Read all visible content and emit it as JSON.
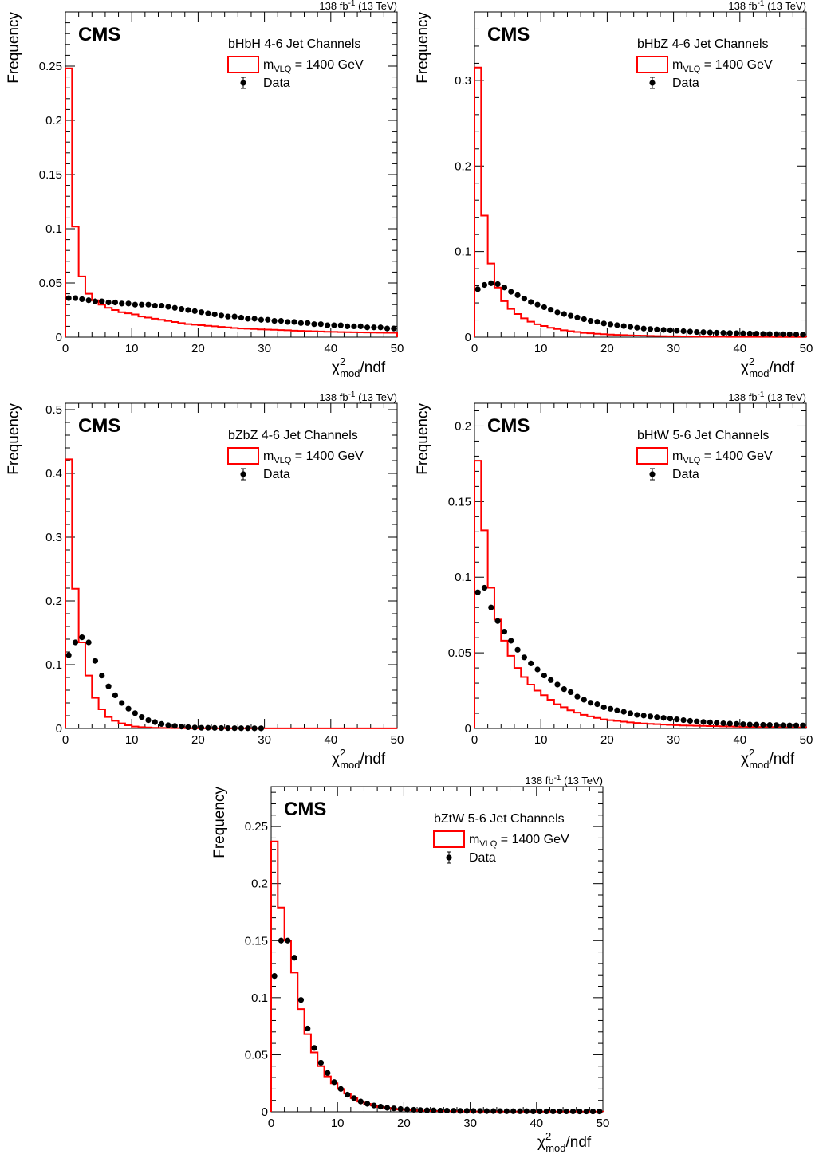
{
  "colors": {
    "signal": "#ff0000",
    "data": "#000000",
    "frame": "#000000"
  },
  "chart_data": [
    {
      "type": "histogram+scatter",
      "experiment": "CMS",
      "lumi_label": "138 fb",
      "lumi_sup": "-1",
      "energy_label": "(13 TeV)",
      "channel": "bHbH 4-6 Jet Channels",
      "legend": {
        "signal_prefix": "m",
        "signal_sub": "VLQ",
        "signal_suffix": " = 1400 GeV",
        "data_label": "Data"
      },
      "ylabel": "Frequency",
      "xlabel_chi": "χ",
      "xlabel_sup": "2",
      "xlabel_sub": "mod",
      "xlabel_suffix": "/ndf",
      "xlim": [
        0,
        50
      ],
      "ylim": [
        0,
        0.3
      ],
      "xticks": [
        0,
        10,
        20,
        30,
        40,
        50
      ],
      "xtick_labels": [
        "0",
        "10",
        "20",
        "30",
        "40",
        "50"
      ],
      "yticks": [
        0,
        0.05,
        0.1,
        0.15,
        0.2,
        0.25
      ],
      "ytick_labels": [
        "0",
        "0.05",
        "0.1",
        "0.15",
        "0.2",
        "0.25"
      ],
      "signal": [
        0.248,
        0.102,
        0.056,
        0.04,
        0.034,
        0.03,
        0.027,
        0.025,
        0.023,
        0.022,
        0.021,
        0.019,
        0.018,
        0.017,
        0.016,
        0.015,
        0.014,
        0.013,
        0.012,
        0.0115,
        0.011,
        0.0105,
        0.01,
        0.0095,
        0.009,
        0.0085,
        0.008,
        0.0078,
        0.0075,
        0.0072,
        0.007,
        0.0068,
        0.0065,
        0.0063,
        0.006,
        0.0058,
        0.0056,
        0.0054,
        0.0052,
        0.005,
        0.0049,
        0.0047,
        0.0046,
        0.0045,
        0.0044,
        0.0043,
        0.0042,
        0.0041,
        0.004,
        0.004
      ],
      "data": [
        0.036,
        0.036,
        0.035,
        0.034,
        0.033,
        0.033,
        0.032,
        0.032,
        0.031,
        0.031,
        0.03,
        0.03,
        0.03,
        0.029,
        0.029,
        0.028,
        0.027,
        0.026,
        0.025,
        0.024,
        0.023,
        0.022,
        0.021,
        0.02,
        0.019,
        0.019,
        0.018,
        0.017,
        0.017,
        0.016,
        0.016,
        0.015,
        0.015,
        0.014,
        0.014,
        0.013,
        0.013,
        0.012,
        0.012,
        0.011,
        0.011,
        0.011,
        0.01,
        0.01,
        0.01,
        0.009,
        0.009,
        0.009,
        0.008,
        0.008
      ]
    },
    {
      "type": "histogram+scatter",
      "experiment": "CMS",
      "lumi_label": "138 fb",
      "lumi_sup": "-1",
      "energy_label": "(13 TeV)",
      "channel": "bHbZ 4-6 Jet Channels",
      "legend": {
        "signal_prefix": "m",
        "signal_sub": "VLQ",
        "signal_suffix": " = 1400 GeV",
        "data_label": "Data"
      },
      "ylabel": "Frequency",
      "xlabel_chi": "χ",
      "xlabel_sup": "2",
      "xlabel_sub": "mod",
      "xlabel_suffix": "/ndf",
      "xlim": [
        0,
        50
      ],
      "ylim": [
        0,
        0.38
      ],
      "xticks": [
        0,
        10,
        20,
        30,
        40,
        50
      ],
      "xtick_labels": [
        "0",
        "10",
        "20",
        "30",
        "40",
        "50"
      ],
      "yticks": [
        0,
        0.1,
        0.2,
        0.3
      ],
      "ytick_labels": [
        "0",
        "0.1",
        "0.2",
        "0.3"
      ],
      "signal": [
        0.315,
        0.142,
        0.086,
        0.058,
        0.042,
        0.033,
        0.027,
        0.022,
        0.018,
        0.015,
        0.013,
        0.011,
        0.0095,
        0.008,
        0.007,
        0.006,
        0.005,
        0.0045,
        0.004,
        0.0035,
        0.003,
        0.0027,
        0.0024,
        0.0021,
        0.0019,
        0.0017,
        0.0015,
        0.0013,
        0.0012,
        0.0011,
        0.001,
        0.0009,
        0.0008,
        0.0007,
        0.0006,
        0.0006,
        0.0005,
        0.0005,
        0.0004,
        0.0004,
        0.0004,
        0.0003,
        0.0003,
        0.0003,
        0.0003,
        0.0002,
        0.0002,
        0.0002,
        0.0002,
        0.0002
      ],
      "data": [
        0.056,
        0.061,
        0.063,
        0.062,
        0.058,
        0.053,
        0.049,
        0.045,
        0.041,
        0.038,
        0.035,
        0.032,
        0.029,
        0.027,
        0.025,
        0.023,
        0.021,
        0.019,
        0.018,
        0.016,
        0.015,
        0.014,
        0.013,
        0.012,
        0.011,
        0.01,
        0.0095,
        0.009,
        0.0085,
        0.008,
        0.0075,
        0.007,
        0.0065,
        0.006,
        0.0058,
        0.0055,
        0.0052,
        0.005,
        0.0048,
        0.0046,
        0.0044,
        0.0042,
        0.004,
        0.0038,
        0.0036,
        0.0035,
        0.0034,
        0.0033,
        0.0032,
        0.003
      ]
    },
    {
      "type": "histogram+scatter",
      "experiment": "CMS",
      "lumi_label": "138 fb",
      "lumi_sup": "-1",
      "energy_label": "(13 TeV)",
      "channel": "bZbZ 4-6 Jet Channels",
      "legend": {
        "signal_prefix": "m",
        "signal_sub": "VLQ",
        "signal_suffix": " = 1400 GeV",
        "data_label": "Data"
      },
      "ylabel": "Frequency",
      "xlabel_chi": "χ",
      "xlabel_sup": "2",
      "xlabel_sub": "mod",
      "xlabel_suffix": "/ndf",
      "xlim": [
        0,
        50
      ],
      "ylim": [
        0,
        0.51
      ],
      "xticks": [
        0,
        10,
        20,
        30,
        40,
        50
      ],
      "xtick_labels": [
        "0",
        "10",
        "20",
        "30",
        "40",
        "50"
      ],
      "yticks": [
        0,
        0.1,
        0.2,
        0.3,
        0.4,
        0.5
      ],
      "ytick_labels": [
        "0",
        "0.1",
        "0.2",
        "0.3",
        "0.4",
        "0.5"
      ],
      "signal": [
        0.422,
        0.219,
        0.135,
        0.083,
        0.048,
        0.03,
        0.018,
        0.012,
        0.008,
        0.005,
        0.003,
        0.002,
        0.0015,
        0.001,
        0.0008,
        0.0006,
        0.0005,
        0.0004,
        0.0003,
        0.0002,
        0.0002,
        0.0001,
        0.0001,
        0.0001,
        0.0001,
        0.0001,
        0.0001,
        0.0001,
        0.0001,
        0.0001,
        0.0001,
        0.0001,
        0.0001,
        0.0001,
        0.0001,
        0.0001,
        0.0001,
        0.0001,
        0.0001,
        0.0001,
        0.0001,
        0.0001,
        0.0001,
        0.0001,
        0.0001,
        0.0001,
        0.0001,
        0.0001,
        0.0001,
        0.0001
      ],
      "data": [
        0.115,
        0.135,
        0.143,
        0.135,
        0.106,
        0.083,
        0.066,
        0.052,
        0.04,
        0.031,
        0.024,
        0.018,
        0.013,
        0.01,
        0.007,
        0.005,
        0.004,
        0.003,
        0.002,
        0.0015,
        0.001,
        0.001,
        0.0008,
        0.0006,
        0.0005,
        0.0004,
        0.0003,
        0.0003,
        0.0002,
        0.0002
      ]
    },
    {
      "type": "histogram+scatter",
      "experiment": "CMS",
      "lumi_label": "138 fb",
      "lumi_sup": "-1",
      "energy_label": "(13 TeV)",
      "channel": "bHtW 5-6 Jet Channels",
      "legend": {
        "signal_prefix": "m",
        "signal_sub": "VLQ",
        "signal_suffix": " = 1400 GeV",
        "data_label": "Data"
      },
      "ylabel": "Frequency",
      "xlabel_chi": "χ",
      "xlabel_sup": "2",
      "xlabel_sub": "mod",
      "xlabel_suffix": "/ndf",
      "xlim": [
        0,
        50
      ],
      "ylim": [
        0,
        0.215
      ],
      "xticks": [
        0,
        10,
        20,
        30,
        40,
        50
      ],
      "xtick_labels": [
        "0",
        "10",
        "20",
        "30",
        "40",
        "50"
      ],
      "yticks": [
        0,
        0.05,
        0.1,
        0.15,
        0.2
      ],
      "ytick_labels": [
        "0",
        "0.05",
        "0.1",
        "0.15",
        "0.2"
      ],
      "signal": [
        0.177,
        0.131,
        0.093,
        0.072,
        0.058,
        0.048,
        0.04,
        0.034,
        0.029,
        0.025,
        0.022,
        0.019,
        0.016,
        0.014,
        0.012,
        0.0105,
        0.009,
        0.008,
        0.007,
        0.006,
        0.0055,
        0.005,
        0.0045,
        0.004,
        0.0036,
        0.0033,
        0.003,
        0.0028,
        0.0026,
        0.0024,
        0.0022,
        0.002,
        0.0019,
        0.0018,
        0.0017,
        0.0016,
        0.0015,
        0.0014,
        0.0013,
        0.0012,
        0.0011,
        0.001,
        0.001,
        0.0009,
        0.0009,
        0.0008,
        0.0008,
        0.0007,
        0.0007,
        0.0007
      ],
      "data": [
        0.09,
        0.093,
        0.08,
        0.071,
        0.064,
        0.058,
        0.052,
        0.047,
        0.043,
        0.039,
        0.035,
        0.032,
        0.029,
        0.026,
        0.024,
        0.021,
        0.019,
        0.017,
        0.016,
        0.014,
        0.013,
        0.012,
        0.011,
        0.01,
        0.009,
        0.0085,
        0.008,
        0.0075,
        0.007,
        0.0065,
        0.006,
        0.0055,
        0.005,
        0.0046,
        0.0043,
        0.004,
        0.0037,
        0.0034,
        0.0032,
        0.003,
        0.0028,
        0.0026,
        0.0025,
        0.0024,
        0.0023,
        0.0022,
        0.0021,
        0.002,
        0.002,
        0.002
      ]
    },
    {
      "type": "histogram+scatter",
      "experiment": "CMS",
      "lumi_label": "138 fb",
      "lumi_sup": "-1",
      "energy_label": "(13 TeV)",
      "channel": "bZtW 5-6 Jet Channels",
      "legend": {
        "signal_prefix": "m",
        "signal_sub": "VLQ",
        "signal_suffix": " = 1400 GeV",
        "data_label": "Data"
      },
      "ylabel": "Frequency",
      "xlabel_chi": "χ",
      "xlabel_sup": "2",
      "xlabel_sub": "mod",
      "xlabel_suffix": "/ndf",
      "xlim": [
        0,
        50
      ],
      "ylim": [
        0,
        0.285
      ],
      "xticks": [
        0,
        10,
        20,
        30,
        40,
        50
      ],
      "xtick_labels": [
        "0",
        "10",
        "20",
        "30",
        "40",
        "50"
      ],
      "yticks": [
        0,
        0.05,
        0.1,
        0.15,
        0.2,
        0.25
      ],
      "ytick_labels": [
        "0",
        "0.05",
        "0.1",
        "0.15",
        "0.2",
        "0.25"
      ],
      "signal": [
        0.237,
        0.179,
        0.15,
        0.122,
        0.09,
        0.068,
        0.052,
        0.04,
        0.031,
        0.025,
        0.02,
        0.016,
        0.012,
        0.009,
        0.007,
        0.0055,
        0.0042,
        0.0032,
        0.0025,
        0.002,
        0.0016,
        0.0013,
        0.001,
        0.0008,
        0.0007,
        0.0006,
        0.0005,
        0.0004,
        0.0004,
        0.0003,
        0.0003,
        0.0003,
        0.0002,
        0.0002,
        0.0002,
        0.0002,
        0.0002,
        0.0002,
        0.0002,
        0.0002,
        0.0002,
        0.0002,
        0.0002,
        0.0002,
        0.0002,
        0.0002,
        0.0002,
        0.0002,
        0.0002,
        0.0002
      ],
      "data": [
        0.119,
        0.15,
        0.15,
        0.135,
        0.098,
        0.073,
        0.056,
        0.043,
        0.034,
        0.026,
        0.02,
        0.015,
        0.012,
        0.009,
        0.007,
        0.0055,
        0.0045,
        0.0035,
        0.003,
        0.0025,
        0.002,
        0.0018,
        0.0015,
        0.0013,
        0.0012,
        0.001,
        0.001,
        0.0009,
        0.0008,
        0.0008,
        0.0007,
        0.0007,
        0.0006,
        0.0006,
        0.0006,
        0.0005,
        0.0005,
        0.0005,
        0.0005,
        0.0004,
        0.0004,
        0.0004,
        0.0004,
        0.0004,
        0.0004,
        0.0004,
        0.0003,
        0.0003,
        0.0003,
        0.0003
      ]
    }
  ]
}
